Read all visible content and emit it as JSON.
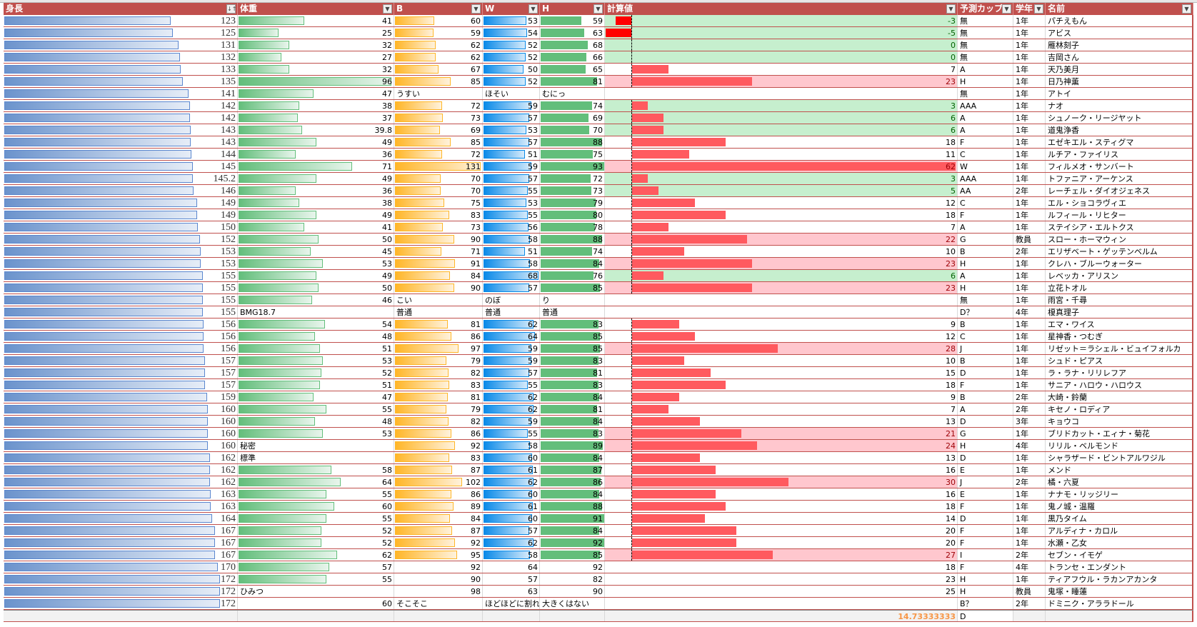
{
  "headers": [
    "身長",
    "体重",
    "B",
    "W",
    "H",
    "計算値",
    "予測カップ",
    "学年",
    "名前"
  ],
  "colors": {
    "header": "#c0504d",
    "green_fill": "#c6efce",
    "pink_fill": "#ffc7ce",
    "neg_bar": "#ff0000",
    "pos_bar": "#ff5a5f"
  },
  "rows": [
    [
      "123",
      "41",
      "60",
      "53",
      "59",
      "-3",
      "無",
      "1年",
      "パチえもん"
    ],
    [
      "125",
      "25",
      "59",
      "54",
      "63",
      "-5",
      "無",
      "1年",
      "アビス"
    ],
    [
      "131",
      "32",
      "62",
      "52",
      "68",
      "0",
      "無",
      "1年",
      "雁林刻子"
    ],
    [
      "132",
      "27",
      "62",
      "52",
      "66",
      "0",
      "無",
      "1年",
      "吉岡さん"
    ],
    [
      "133",
      "32",
      "67",
      "50",
      "65",
      "7",
      "A",
      "1年",
      "天乃美月"
    ],
    [
      "135",
      "96",
      "85",
      "52",
      "81",
      "23",
      "H",
      "1年",
      "日乃神薫"
    ],
    [
      "141",
      "47",
      "うすい",
      "ほそい",
      "むにっ",
      "",
      "無",
      "1年",
      "アトイ"
    ],
    [
      "142",
      "38",
      "72",
      "59",
      "74",
      "3",
      "AAA",
      "1年",
      "ナオ"
    ],
    [
      "142",
      "37",
      "73",
      "57",
      "69",
      "6",
      "A",
      "1年",
      "シュノーク・リージヤット"
    ],
    [
      "143",
      "39.8",
      "69",
      "53",
      "70",
      "6",
      "A",
      "1年",
      "道鬼浄香"
    ],
    [
      "143",
      "49",
      "85",
      "57",
      "88",
      "18",
      "F",
      "1年",
      "エゼキエル・スティグマ"
    ],
    [
      "144",
      "36",
      "72",
      "51",
      "75",
      "11",
      "C",
      "1年",
      "ルチア・ファイリス"
    ],
    [
      "145",
      "71",
      "131",
      "59",
      "93",
      "62",
      "W",
      "1年",
      "フィルメオ・サンバート"
    ],
    [
      "145.2",
      "49",
      "70",
      "57",
      "72",
      "3",
      "AAA",
      "1年",
      "トファニア・アーケンス"
    ],
    [
      "146",
      "36",
      "70",
      "55",
      "73",
      "5",
      "AA",
      "2年",
      "レーチェル・ダイオジェネス"
    ],
    [
      "149",
      "38",
      "75",
      "53",
      "79",
      "12",
      "C",
      "1年",
      "エル・ショコラヴィエ"
    ],
    [
      "149",
      "49",
      "83",
      "55",
      "80",
      "18",
      "F",
      "1年",
      "ルフィール・リヒター"
    ],
    [
      "150",
      "41",
      "73",
      "56",
      "78",
      "7",
      "A",
      "1年",
      "ステイシア・エルトクス"
    ],
    [
      "152",
      "50",
      "90",
      "58",
      "88",
      "22",
      "G",
      "教員",
      "スロー・ホーマウィン"
    ],
    [
      "153",
      "45",
      "71",
      "51",
      "74",
      "10",
      "B",
      "2年",
      "エリザベート・ゲッテンベルム"
    ],
    [
      "153",
      "53",
      "91",
      "58",
      "84",
      "23",
      "H",
      "1年",
      "クレハ・ブルーウォーター"
    ],
    [
      "155",
      "49",
      "84",
      "68",
      "76",
      "6",
      "A",
      "1年",
      "レベッカ・アリスン"
    ],
    [
      "155",
      "50",
      "90",
      "57",
      "85",
      "23",
      "H",
      "1年",
      "立花トオル"
    ],
    [
      "155",
      "46",
      "こい",
      "のぼ",
      "り",
      "",
      "無",
      "1年",
      "雨宮・千尋"
    ],
    [
      "155",
      "BMG18.7",
      "普通",
      "普通",
      "普通",
      "",
      "D？",
      "4年",
      "榎真理子"
    ],
    [
      "156",
      "54",
      "81",
      "62",
      "83",
      "9",
      "B",
      "1年",
      "エマ・ワイス"
    ],
    [
      "156",
      "48",
      "86",
      "64",
      "85",
      "12",
      "C",
      "1年",
      "星神香・つむぎ"
    ],
    [
      "156",
      "51",
      "97",
      "59",
      "85",
      "28",
      "J",
      "1年",
      "リゼット＝ラシェル・ビュイフォルカ"
    ],
    [
      "157",
      "53",
      "79",
      "59",
      "83",
      "10",
      "B",
      "1年",
      "シュド・ピアス"
    ],
    [
      "157",
      "52",
      "82",
      "57",
      "81",
      "15",
      "D",
      "1年",
      "ラ・ラナ・リリレフア"
    ],
    [
      "157",
      "51",
      "83",
      "55",
      "83",
      "18",
      "F",
      "1年",
      "サニア・ハロウ・ハロウス"
    ],
    [
      "159",
      "47",
      "81",
      "62",
      "84",
      "9",
      "B",
      "2年",
      "大崎・鈴蘭"
    ],
    [
      "160",
      "55",
      "79",
      "62",
      "81",
      "7",
      "A",
      "2年",
      "キセノ・ロディア"
    ],
    [
      "160",
      "48",
      "82",
      "59",
      "84",
      "13",
      "D",
      "3年",
      "キョウコ"
    ],
    [
      "160",
      "53",
      "86",
      "55",
      "83",
      "21",
      "G",
      "1年",
      "ブリドカット・エィナ・菊花"
    ],
    [
      "160",
      "秘密",
      "92",
      "58",
      "89",
      "24",
      "H",
      "4年",
      "リリル・ベルモンド"
    ],
    [
      "162",
      "標準",
      "83",
      "60",
      "84",
      "13",
      "D",
      "1年",
      "シャラザード・ビントアルワジル"
    ],
    [
      "162",
      "58",
      "87",
      "61",
      "87",
      "16",
      "E",
      "1年",
      "メンド"
    ],
    [
      "162",
      "64",
      "102",
      "62",
      "86",
      "30",
      "J",
      "2年",
      "橘・六夏"
    ],
    [
      "163",
      "55",
      "86",
      "60",
      "84",
      "16",
      "E",
      "1年",
      "ナナモ・リッジリー"
    ],
    [
      "163",
      "60",
      "89",
      "61",
      "88",
      "18",
      "F",
      "1年",
      "鬼ノ城・温羅"
    ],
    [
      "164",
      "55",
      "84",
      "60",
      "91",
      "14",
      "D",
      "1年",
      "黒乃タイム"
    ],
    [
      "167",
      "52",
      "87",
      "57",
      "84",
      "20",
      "F",
      "1年",
      "アルディナ・カロル"
    ],
    [
      "167",
      "52",
      "92",
      "62",
      "92",
      "20",
      "F",
      "1年",
      "水瀬・乙女"
    ],
    [
      "167",
      "62",
      "95",
      "58",
      "85",
      "27",
      "I",
      "2年",
      "セブン・イモゲ"
    ],
    [
      "170",
      "57",
      "92",
      "64",
      "92",
      "18",
      "F",
      "4年",
      "トランセ・エンダント"
    ],
    [
      "172",
      "55",
      "90",
      "57",
      "82",
      "23",
      "H",
      "1年",
      "ティアフウル・ラカンアカンタ"
    ],
    [
      "172",
      "ひみつ",
      "98",
      "63",
      "90",
      "25",
      "H",
      "教員",
      "鬼塚・睡蓮"
    ],
    [
      "172",
      "60",
      "そこそこ",
      "ほどほどに割れ",
      "大きくはない",
      "",
      "B？",
      "2年",
      "ドミニク・アララドール"
    ]
  ],
  "total": {
    "calc": "14.73333333",
    "cup": "D"
  }
}
